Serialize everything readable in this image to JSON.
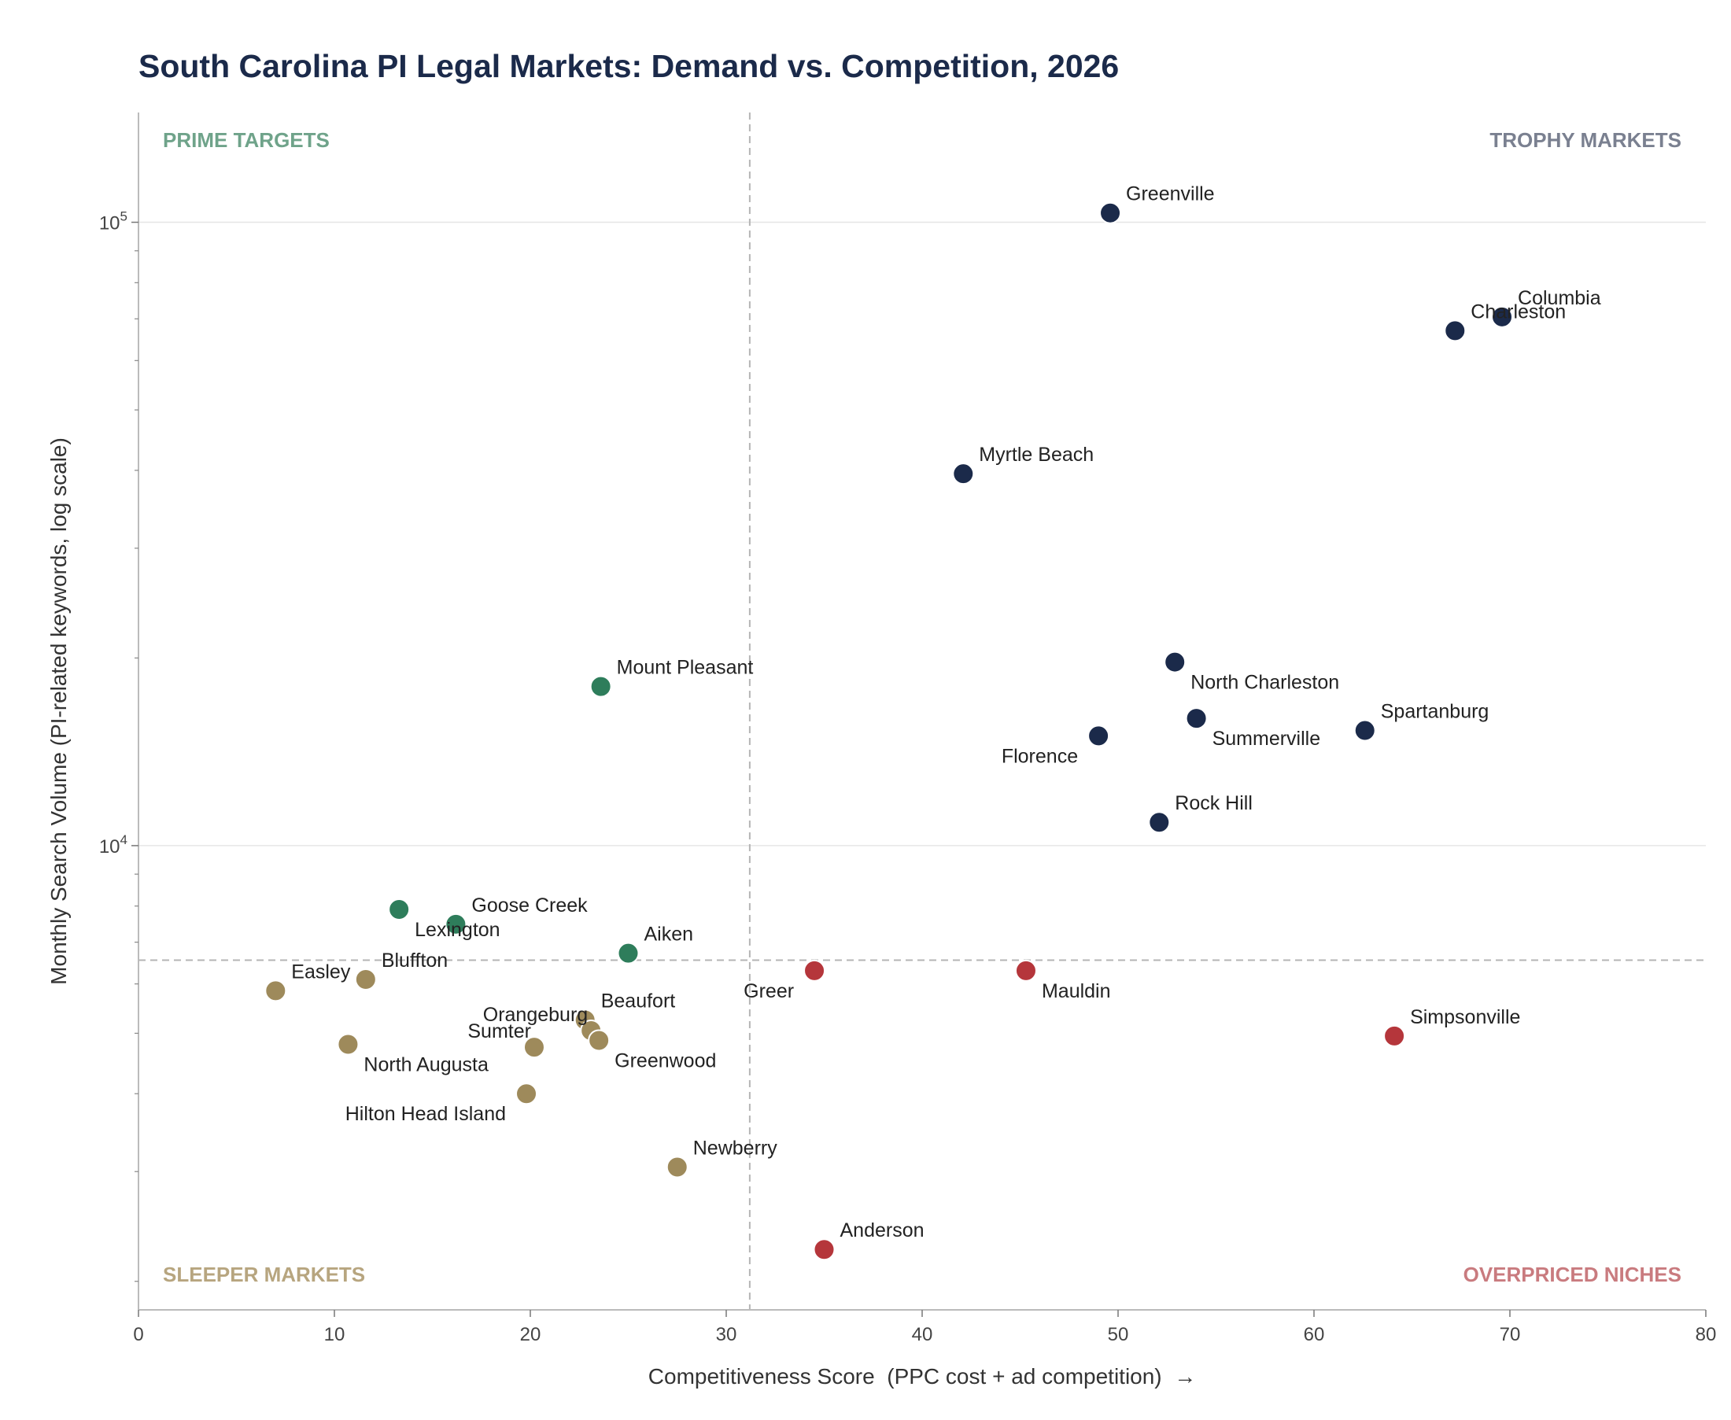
{
  "chart_data": {
    "type": "scatter",
    "title": "South Carolina PI Legal Markets: Demand vs. Competition, 2026",
    "xlabel": "Competitiveness Score  (PPC cost + ad competition)  →",
    "ylabel": "Monthly Search Volume (PI-related keywords, log scale)",
    "xlim": [
      0,
      80
    ],
    "ylim": [
      1800,
      150000
    ],
    "y_scale": "log",
    "x_ticks": [
      0,
      10,
      20,
      30,
      40,
      50,
      60,
      70,
      80
    ],
    "y_ticks": [
      {
        "value": 10000,
        "base": "10",
        "exp": "4"
      },
      {
        "value": 100000,
        "base": "10",
        "exp": "5"
      }
    ],
    "grid": "horizontal major",
    "reference_lines": {
      "x": 31.2,
      "y": 6550
    },
    "quadrant_labels": [
      {
        "text": "PRIME TARGETS",
        "corner": "top-left",
        "color": "#6fa38a"
      },
      {
        "text": "TROPHY MARKETS",
        "corner": "top-right",
        "color": "#7a8090"
      },
      {
        "text": "SLEEPER MARKETS",
        "corner": "bottom-left",
        "color": "#b7a57f"
      },
      {
        "text": "OVERPRICED NICHES",
        "corner": "bottom-right",
        "color": "#c97b7f"
      }
    ],
    "colors": {
      "trophy": "#1b2a4a",
      "prime": "#2e7d5b",
      "sleeper": "#9e8a5b",
      "overpriced": "#b5363b",
      "title": "#1b2a4a"
    },
    "points": [
      {
        "name": "Greenville",
        "x": 49.6,
        "y": 103500,
        "group": "trophy",
        "label_pos": "upper-right"
      },
      {
        "name": "Columbia",
        "x": 69.6,
        "y": 70500,
        "group": "trophy",
        "label_pos": "upper-right"
      },
      {
        "name": "Charleston",
        "x": 67.2,
        "y": 67000,
        "group": "trophy",
        "label_pos": "upper-right"
      },
      {
        "name": "Myrtle Beach",
        "x": 42.1,
        "y": 39500,
        "group": "trophy",
        "label_pos": "upper-right"
      },
      {
        "name": "North Charleston",
        "x": 52.9,
        "y": 19700,
        "group": "trophy",
        "label_pos": "lower-right"
      },
      {
        "name": "Summerville",
        "x": 54.0,
        "y": 16000,
        "group": "trophy",
        "label_pos": "lower-right"
      },
      {
        "name": "Spartanburg",
        "x": 62.6,
        "y": 15300,
        "group": "trophy",
        "label_pos": "upper-right"
      },
      {
        "name": "Florence",
        "x": 49.0,
        "y": 15000,
        "group": "trophy",
        "label_pos": "lower-left"
      },
      {
        "name": "Rock Hill",
        "x": 52.1,
        "y": 10900,
        "group": "trophy",
        "label_pos": "upper-right"
      },
      {
        "name": "Mount Pleasant",
        "x": 23.6,
        "y": 18000,
        "group": "prime",
        "label_pos": "upper-right"
      },
      {
        "name": "Goose Creek",
        "x": 16.2,
        "y": 7480,
        "group": "prime",
        "label_pos": "upper-right"
      },
      {
        "name": "Lexington",
        "x": 13.3,
        "y": 7900,
        "group": "prime",
        "label_pos": "lower-right"
      },
      {
        "name": "Aiken",
        "x": 25.0,
        "y": 6720,
        "group": "prime",
        "label_pos": "upper-right"
      },
      {
        "name": "Greer",
        "x": 34.5,
        "y": 6300,
        "group": "overpriced",
        "label_pos": "lower-left"
      },
      {
        "name": "Mauldin",
        "x": 45.3,
        "y": 6300,
        "group": "overpriced",
        "label_pos": "lower-right"
      },
      {
        "name": "Simpsonville",
        "x": 64.1,
        "y": 4950,
        "group": "overpriced",
        "label_pos": "upper-right"
      },
      {
        "name": "Anderson",
        "x": 35.0,
        "y": 2250,
        "group": "overpriced",
        "label_pos": "upper-right"
      },
      {
        "name": "Bluffton",
        "x": 11.6,
        "y": 6100,
        "group": "sleeper",
        "label_pos": "upper-right"
      },
      {
        "name": "Easley",
        "x": 7.0,
        "y": 5850,
        "group": "sleeper",
        "label_pos": "upper-right"
      },
      {
        "name": "Beaufort",
        "x": 22.8,
        "y": 5250,
        "group": "sleeper",
        "label_pos": "upper-right"
      },
      {
        "name": "Orangeburg",
        "x": 23.1,
        "y": 5050,
        "group": "sleeper",
        "label_pos": "upper-left"
      },
      {
        "name": "Greenwood",
        "x": 23.5,
        "y": 4870,
        "group": "sleeper",
        "label_pos": "lower-right"
      },
      {
        "name": "Sumter",
        "x": 20.2,
        "y": 4750,
        "group": "sleeper",
        "label_pos": "upper-left"
      },
      {
        "name": "North Augusta",
        "x": 10.7,
        "y": 4800,
        "group": "sleeper",
        "label_pos": "lower-right"
      },
      {
        "name": "Hilton Head Island",
        "x": 19.8,
        "y": 4000,
        "group": "sleeper",
        "label_pos": "lower-left"
      },
      {
        "name": "Newberry",
        "x": 27.5,
        "y": 3050,
        "group": "sleeper",
        "label_pos": "upper-right"
      }
    ]
  }
}
